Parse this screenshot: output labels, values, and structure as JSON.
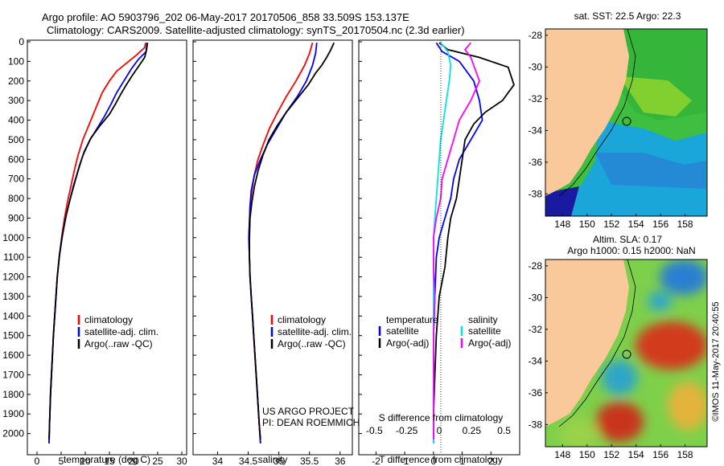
{
  "header": {
    "line1": "Argo profile: AO 5903796_202 06-May-2017 20170506_858 33.509S 153.137E",
    "line2": "Climatology: CARS2009. Satellite-adjusted climatology: synTS_20170504.nc (2.3d earlier)"
  },
  "chart_data": [
    {
      "type": "line",
      "xlabel": "temperature (deg C)",
      "xlim": [
        -2,
        31
      ],
      "xticks": [
        "0",
        "5",
        "10",
        "15",
        "20",
        "25",
        "30"
      ],
      "ylim": [
        2100,
        0
      ],
      "yticks": [
        "0",
        "100",
        "200",
        "300",
        "400",
        "500",
        "600",
        "700",
        "800",
        "900",
        "1000",
        "1100",
        "1200",
        "1300",
        "1400",
        "1500",
        "1600",
        "1700",
        "1800",
        "1900",
        "2000"
      ],
      "legend": [
        "climatology",
        "satellite-adj. clim.",
        "Argo(..raw -QC)"
      ],
      "series": [
        {
          "name": "climatology",
          "color": "#ff0000",
          "points": [
            [
              22.5,
              5
            ],
            [
              22.3,
              30
            ],
            [
              20.5,
              70
            ],
            [
              18.5,
              110
            ],
            [
              16.5,
              150
            ],
            [
              15.0,
              200
            ],
            [
              13.5,
              260
            ],
            [
              12.5,
              320
            ],
            [
              11.5,
              380
            ],
            [
              10.5,
              440
            ],
            [
              9.5,
              500
            ],
            [
              8.5,
              580
            ],
            [
              7.7,
              660
            ],
            [
              7.0,
              740
            ],
            [
              6.3,
              820
            ],
            [
              5.7,
              900
            ],
            [
              5.1,
              1000
            ],
            [
              4.6,
              1100
            ],
            [
              4.2,
              1200
            ],
            [
              3.8,
              1350
            ],
            [
              3.4,
              1500
            ],
            [
              3.1,
              1650
            ],
            [
              2.8,
              1800
            ],
            [
              2.6,
              1950
            ],
            [
              2.5,
              2050
            ]
          ]
        },
        {
          "name": "satellite-adj. clim.",
          "color": "#0000ff",
          "points": [
            [
              22.8,
              5
            ],
            [
              22.6,
              50
            ],
            [
              21.0,
              90
            ],
            [
              19.5,
              140
            ],
            [
              18.0,
              200
            ],
            [
              16.5,
              260
            ],
            [
              15.3,
              320
            ],
            [
              14.0,
              380
            ],
            [
              12.5,
              440
            ],
            [
              11.0,
              500
            ],
            [
              9.5,
              580
            ],
            [
              8.5,
              660
            ],
            [
              7.5,
              740
            ],
            [
              6.7,
              820
            ],
            [
              5.9,
              900
            ],
            [
              5.2,
              1000
            ],
            [
              4.6,
              1100
            ],
            [
              4.2,
              1200
            ],
            [
              3.8,
              1350
            ],
            [
              3.4,
              1500
            ],
            [
              3.1,
              1650
            ],
            [
              2.8,
              1800
            ],
            [
              2.6,
              1950
            ],
            [
              2.5,
              2050
            ]
          ]
        },
        {
          "name": "Argo(..raw -QC)",
          "color": "#000000",
          "points": [
            [
              22.9,
              5
            ],
            [
              22.7,
              40
            ],
            [
              22.3,
              80
            ],
            [
              21.2,
              120
            ],
            [
              19.8,
              170
            ],
            [
              18.5,
              220
            ],
            [
              17.3,
              270
            ],
            [
              16.2,
              320
            ],
            [
              15.0,
              370
            ],
            [
              13.0,
              430
            ],
            [
              11.2,
              490
            ],
            [
              9.8,
              560
            ],
            [
              8.7,
              640
            ],
            [
              7.8,
              720
            ],
            [
              6.9,
              800
            ],
            [
              6.1,
              880
            ],
            [
              5.3,
              980
            ],
            [
              4.7,
              1080
            ],
            [
              4.2,
              1200
            ],
            [
              3.8,
              1350
            ],
            [
              3.4,
              1500
            ],
            [
              3.1,
              1650
            ],
            [
              2.8,
              1800
            ],
            [
              2.6,
              1950
            ],
            [
              2.5,
              2030
            ]
          ]
        }
      ]
    },
    {
      "type": "line",
      "xlabel": "salinity",
      "xlim": [
        33.6,
        36.2
      ],
      "xticks": [
        "34",
        "34.5",
        "35",
        "35.5",
        "36"
      ],
      "ylim": [
        2100,
        0
      ],
      "legend": [
        "climatology",
        "satellite-adj. clim.",
        "Argo(..raw -QC)"
      ],
      "annotations": [
        "US ARGO PROJECT",
        "PI: DEAN ROEMMICH"
      ],
      "series": [
        {
          "name": "climatology",
          "color": "#ff0000",
          "points": [
            [
              35.55,
              5
            ],
            [
              35.5,
              60
            ],
            [
              35.42,
              120
            ],
            [
              35.28,
              200
            ],
            [
              35.12,
              280
            ],
            [
              34.98,
              360
            ],
            [
              34.85,
              440
            ],
            [
              34.75,
              520
            ],
            [
              34.66,
              600
            ],
            [
              34.6,
              680
            ],
            [
              34.56,
              760
            ],
            [
              34.53,
              840
            ],
            [
              34.52,
              920
            ],
            [
              34.51,
              1000
            ],
            [
              34.52,
              1100
            ],
            [
              34.53,
              1200
            ],
            [
              34.55,
              1300
            ],
            [
              34.57,
              1400
            ],
            [
              34.59,
              1500
            ],
            [
              34.62,
              1650
            ],
            [
              34.65,
              1800
            ],
            [
              34.68,
              1950
            ],
            [
              34.7,
              2050
            ]
          ]
        },
        {
          "name": "satellite-adj. clim.",
          "color": "#0000ff",
          "points": [
            [
              35.62,
              5
            ],
            [
              35.6,
              60
            ],
            [
              35.55,
              120
            ],
            [
              35.45,
              200
            ],
            [
              35.3,
              280
            ],
            [
              35.12,
              360
            ],
            [
              34.97,
              440
            ],
            [
              34.82,
              520
            ],
            [
              34.7,
              600
            ],
            [
              34.6,
              680
            ],
            [
              34.55,
              760
            ],
            [
              34.53,
              840
            ],
            [
              34.52,
              920
            ],
            [
              34.51,
              1000
            ],
            [
              34.52,
              1100
            ],
            [
              34.53,
              1200
            ],
            [
              34.55,
              1300
            ],
            [
              34.57,
              1400
            ],
            [
              34.59,
              1500
            ],
            [
              34.62,
              1650
            ],
            [
              34.65,
              1800
            ],
            [
              34.68,
              1950
            ],
            [
              34.7,
              2050
            ]
          ]
        },
        {
          "name": "Argo(..raw -QC)",
          "color": "#000000",
          "points": [
            [
              35.9,
              5
            ],
            [
              35.85,
              40
            ],
            [
              35.78,
              80
            ],
            [
              35.7,
              120
            ],
            [
              35.6,
              160
            ],
            [
              35.48,
              220
            ],
            [
              35.3,
              290
            ],
            [
              35.12,
              360
            ],
            [
              34.97,
              430
            ],
            [
              34.84,
              500
            ],
            [
              34.74,
              580
            ],
            [
              34.66,
              660
            ],
            [
              34.6,
              740
            ],
            [
              34.56,
              820
            ],
            [
              34.53,
              900
            ],
            [
              34.52,
              1000
            ],
            [
              34.52,
              1100
            ],
            [
              34.53,
              1200
            ],
            [
              34.55,
              1300
            ],
            [
              34.57,
              1400
            ],
            [
              34.59,
              1500
            ],
            [
              34.62,
              1650
            ],
            [
              34.65,
              1800
            ],
            [
              34.68,
              1950
            ],
            [
              34.7,
              2030
            ]
          ]
        }
      ]
    },
    {
      "type": "line",
      "xlabel": "T difference from climatology",
      "x2label": "S difference from climatology",
      "xlim": [
        -2.6,
        3.0
      ],
      "xticks": [
        "-2",
        "-1",
        "0",
        "1",
        "2"
      ],
      "x2ticks": [
        "-0.5",
        "-0.25",
        "0",
        "0.25",
        "0.5"
      ],
      "ylim": [
        2100,
        0
      ],
      "legend_titles": [
        "temperature",
        "salinity"
      ],
      "legend": [
        "satellite",
        "Argo(-adj)",
        "satellite",
        "Argo(-adj)"
      ],
      "series": [
        {
          "name": "temperature satellite",
          "color": "#0000ff",
          "points": [
            [
              0.1,
              5
            ],
            [
              0.3,
              50
            ],
            [
              0.9,
              100
            ],
            [
              1.4,
              200
            ],
            [
              1.6,
              300
            ],
            [
              1.7,
              400
            ],
            [
              1.3,
              500
            ],
            [
              0.9,
              600
            ],
            [
              0.7,
              700
            ],
            [
              0.6,
              800
            ],
            [
              0.4,
              900
            ],
            [
              0.2,
              1000
            ],
            [
              0.1,
              1100
            ],
            [
              0.05,
              1300
            ],
            [
              0,
              1500
            ],
            [
              0,
              1800
            ],
            [
              0,
              2050
            ]
          ]
        },
        {
          "name": "temperature Argo(-adj)",
          "color": "#000000",
          "points": [
            [
              0.2,
              5
            ],
            [
              0.5,
              40
            ],
            [
              1.6,
              80
            ],
            [
              2.6,
              130
            ],
            [
              2.8,
              220
            ],
            [
              2.4,
              300
            ],
            [
              1.8,
              360
            ],
            [
              1.4,
              420
            ],
            [
              1.1,
              500
            ],
            [
              1.0,
              600
            ],
            [
              0.9,
              700
            ],
            [
              0.8,
              800
            ],
            [
              0.6,
              900
            ],
            [
              0.5,
              1000
            ],
            [
              0.4,
              1150
            ],
            [
              0.2,
              1300
            ],
            [
              0.1,
              1500
            ],
            [
              0.05,
              1700
            ],
            [
              0,
              1900
            ],
            [
              0,
              2030
            ]
          ]
        },
        {
          "name": "salinity satellite",
          "color": "#00e5e5",
          "points": [
            [
              0.25,
              5
            ],
            [
              0.5,
              50
            ],
            [
              0.6,
              120
            ],
            [
              0.55,
              200
            ],
            [
              0.45,
              300
            ],
            [
              0.35,
              400
            ],
            [
              0.25,
              500
            ],
            [
              0.2,
              600
            ],
            [
              0.15,
              700
            ],
            [
              0.1,
              800
            ],
            [
              0.05,
              900
            ],
            [
              0,
              1000
            ],
            [
              0,
              1200
            ],
            [
              0,
              1500
            ],
            [
              0,
              1800
            ],
            [
              0,
              2050
            ]
          ]
        },
        {
          "name": "salinity Argo(-adj)",
          "color": "#ff00ff",
          "points": [
            [
              1.3,
              5
            ],
            [
              1.1,
              40
            ],
            [
              1.3,
              80
            ],
            [
              1.45,
              140
            ],
            [
              1.6,
              200
            ],
            [
              1.3,
              300
            ],
            [
              0.9,
              400
            ],
            [
              0.7,
              500
            ],
            [
              0.5,
              600
            ],
            [
              0.3,
              700
            ],
            [
              0.25,
              800
            ],
            [
              0.1,
              900
            ],
            [
              0.0,
              1000
            ],
            [
              0.0,
              1150
            ],
            [
              0.05,
              1300
            ],
            [
              0,
              1500
            ],
            [
              0,
              1800
            ],
            [
              0,
              2030
            ]
          ]
        }
      ]
    }
  ],
  "maps": [
    {
      "title": "sat. SST: 22.5 Argo: 22.3",
      "subtitle": "",
      "xticks": [
        "148",
        "150",
        "152",
        "154",
        "156",
        "158"
      ],
      "yticks": [
        "-28",
        "-30",
        "-32",
        "-34",
        "-36",
        "-38"
      ]
    },
    {
      "title": "Altim. SLA: 0.17",
      "subtitle": "Argo h1000: 0.15 h2000: NaN",
      "xticks": [
        "148",
        "150",
        "152",
        "154",
        "156",
        "158"
      ],
      "yticks": [
        "-28",
        "-30",
        "-32",
        "-34",
        "-36",
        "-38"
      ]
    }
  ],
  "footer": {
    "stamp": "©IMOS 11-May-2017 20:40:55"
  },
  "colors": {
    "land": "#f9c89b",
    "sst_warm": "#30c030",
    "sst_cool": "#1aa6d8",
    "sla_pos": "#c8351b",
    "sla_neg": "#31a6c9"
  }
}
